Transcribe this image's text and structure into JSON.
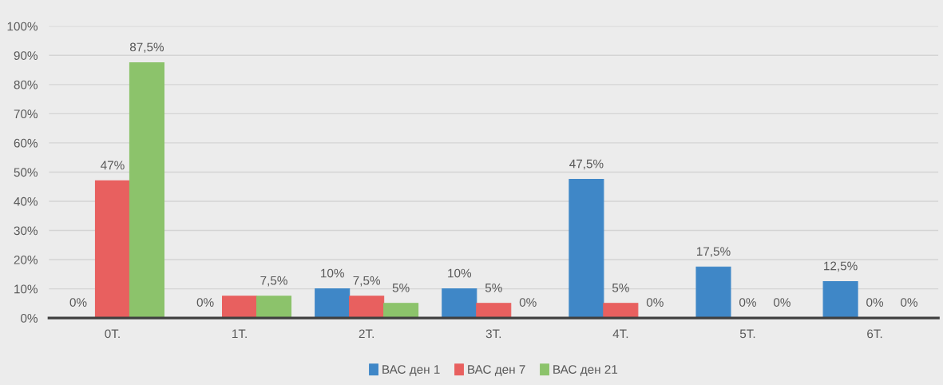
{
  "chart_data": {
    "type": "bar",
    "categories": [
      "0Т.",
      "1Т.",
      "2Т.",
      "3Т.",
      "4Т.",
      "5Т.",
      "6Т."
    ],
    "series": [
      {
        "name": "ВАС ден 1",
        "color": "#3f87c7",
        "values": [
          0,
          0,
          10,
          10,
          47.5,
          17.5,
          12.5
        ],
        "value_labels": [
          "0%",
          "0%",
          "10%",
          "10%",
          "47,5%",
          "17,5%",
          "12,5%"
        ]
      },
      {
        "name": "ВАС ден 7",
        "color": "#e8605f",
        "values": [
          47,
          7.5,
          7.5,
          5,
          5,
          0,
          0
        ],
        "value_labels": [
          "47%",
          null,
          "7,5%",
          "5%",
          "5%",
          "0%",
          "0%"
        ]
      },
      {
        "name": "ВАС ден 21",
        "color": "#8cc36b",
        "values": [
          87.5,
          7.5,
          5,
          0,
          0,
          0,
          0
        ],
        "value_labels": [
          "87,5%",
          "7,5%",
          "5%",
          "0%",
          "0%",
          "0%",
          "0%"
        ]
      }
    ],
    "ylim": [
      0,
      100
    ],
    "yticks": [
      {
        "value": 0,
        "label": "0%"
      },
      {
        "value": 10,
        "label": "10%"
      },
      {
        "value": 20,
        "label": "20%"
      },
      {
        "value": 30,
        "label": "30%"
      },
      {
        "value": 40,
        "label": "40%"
      },
      {
        "value": 50,
        "label": "50%"
      },
      {
        "value": 60,
        "label": "60%"
      },
      {
        "value": 70,
        "label": "70%"
      },
      {
        "value": 80,
        "label": "80%"
      },
      {
        "value": 90,
        "label": "90%"
      },
      {
        "value": 100,
        "label": "100%"
      }
    ],
    "grid": "y",
    "legend": "bottom"
  }
}
